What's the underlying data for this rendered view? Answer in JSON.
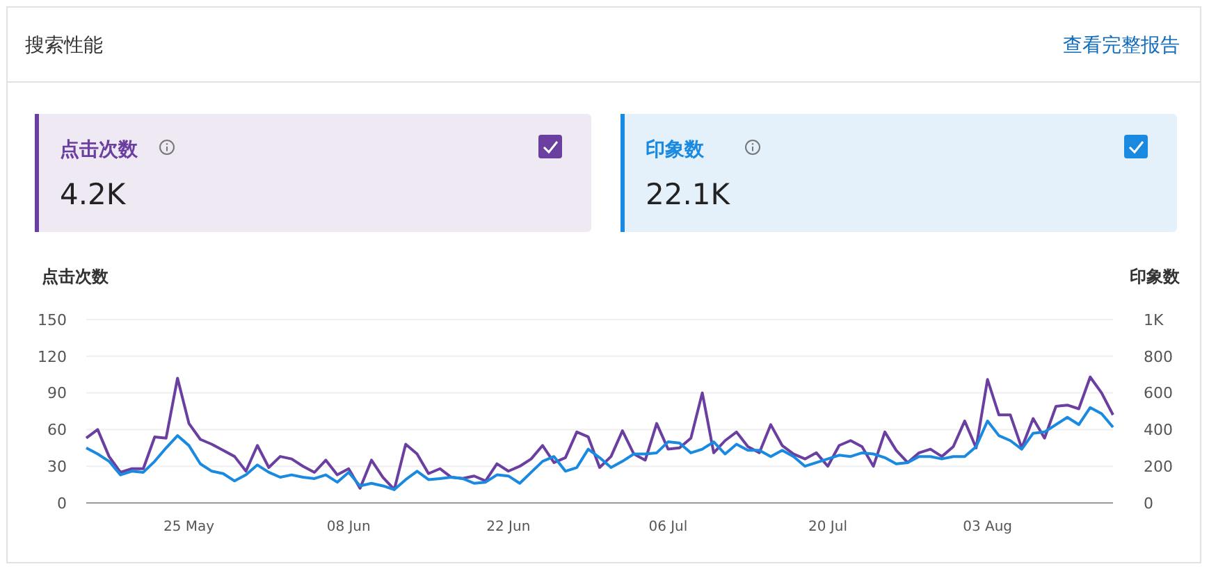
{
  "chart_data": {
    "type": "line",
    "title": "搜索性能",
    "annotations": [
      "查看完整报告",
      "4.2K",
      "22.1K"
    ],
    "ylabel": "点击次数",
    "y2label": "印象数",
    "x": [
      "--05-16",
      "--05-17",
      "--05-18",
      "--05-19",
      "--05-20",
      "--05-21",
      "--05-22",
      "--05-23",
      "--05-24",
      "--05-25",
      "--05-26",
      "--05-27",
      "--05-28",
      "--05-29",
      "--05-30",
      "--05-31",
      "--06-01",
      "--06-02",
      "--06-03",
      "--06-04",
      "--06-05",
      "--06-06",
      "--06-07",
      "--06-08",
      "--06-09",
      "--06-10",
      "--06-11",
      "--06-12",
      "--06-13",
      "--06-14",
      "--06-15",
      "--06-16",
      "--06-17",
      "--06-18",
      "--06-19",
      "--06-20",
      "--06-21",
      "--06-22",
      "--06-23",
      "--06-24",
      "--06-25",
      "--06-26",
      "--06-27",
      "--06-28",
      "--06-29",
      "--06-30",
      "--07-01",
      "--07-02",
      "--07-03",
      "--07-04",
      "--07-05",
      "--07-06",
      "--07-07",
      "--07-08",
      "--07-09",
      "--07-10",
      "--07-11",
      "--07-12",
      "--07-13",
      "--07-14",
      "--07-15",
      "--07-16",
      "--07-17",
      "--07-18",
      "--07-19",
      "--07-20",
      "--07-21",
      "--07-22",
      "--07-23",
      "--07-24",
      "--07-25",
      "--07-26",
      "--07-27",
      "--07-28",
      "--07-29",
      "--07-30",
      "--07-31",
      "--08-01",
      "--08-02",
      "--08-03",
      "--08-04",
      "--08-05",
      "--08-06",
      "--08-07",
      "--08-08",
      "--08-09",
      "--08-10",
      "--08-11",
      "--08-12",
      "--08-13",
      "--08-14"
    ],
    "xlim": [
      "--05-16",
      "--08-14"
    ],
    "xticks": [
      {
        "value": "--05-25",
        "label": "25 May"
      },
      {
        "value": "--06-08",
        "label": "08 Jun"
      },
      {
        "value": "--06-22",
        "label": "22 Jun"
      },
      {
        "value": "--07-06",
        "label": "06 Jul"
      },
      {
        "value": "--07-20",
        "label": "20 Jul"
      },
      {
        "value": "--08-03",
        "label": "03 Aug"
      }
    ],
    "ylim": [
      0,
      150
    ],
    "yticks": [
      0,
      30,
      60,
      90,
      120,
      150
    ],
    "y2lim": [
      0,
      1000
    ],
    "y2ticks": [
      0,
      200,
      400,
      600,
      800,
      {
        "value": 1000,
        "label": "1K"
      }
    ],
    "grid": "y",
    "legend": "top",
    "marker": "none",
    "line_style": "solid",
    "series": [
      {
        "name": "点击次数",
        "color": "#6b3fa0",
        "values": [
          53,
          60,
          38,
          25,
          28,
          28,
          54,
          53,
          102,
          65,
          52,
          48,
          43,
          38,
          26,
          47,
          29,
          38,
          36,
          30,
          25,
          35,
          23,
          28,
          12,
          35,
          21,
          11,
          48,
          40,
          24,
          28,
          21,
          20,
          22,
          18,
          32,
          26,
          30,
          36,
          47,
          33,
          37,
          58,
          54,
          29,
          38,
          59,
          40,
          35,
          65,
          44,
          45,
          53,
          90,
          41,
          51,
          58,
          46,
          41,
          64,
          47,
          40,
          36,
          41,
          30,
          47,
          51,
          46,
          30,
          58,
          43,
          33,
          41,
          44,
          38,
          46,
          67,
          45,
          101,
          72,
          72,
          45,
          69,
          53,
          79,
          80,
          77,
          103,
          90,
          72
        ]
      },
      {
        "name": "印象数",
        "color": "#1a8ae0",
        "axis": "y2",
        "values": [
          300,
          267,
          227,
          153,
          173,
          167,
          227,
          300,
          367,
          313,
          213,
          173,
          160,
          120,
          153,
          207,
          167,
          140,
          153,
          140,
          133,
          153,
          113,
          167,
          93,
          107,
          93,
          73,
          127,
          173,
          127,
          133,
          140,
          133,
          107,
          113,
          153,
          147,
          107,
          167,
          227,
          253,
          173,
          193,
          293,
          247,
          193,
          227,
          267,
          267,
          273,
          333,
          327,
          273,
          293,
          333,
          267,
          320,
          287,
          287,
          253,
          287,
          253,
          200,
          220,
          240,
          260,
          253,
          273,
          267,
          247,
          213,
          220,
          253,
          253,
          240,
          253,
          253,
          307,
          447,
          367,
          340,
          293,
          380,
          387,
          427,
          467,
          427,
          520,
          487,
          413
        ]
      }
    ]
  }
}
